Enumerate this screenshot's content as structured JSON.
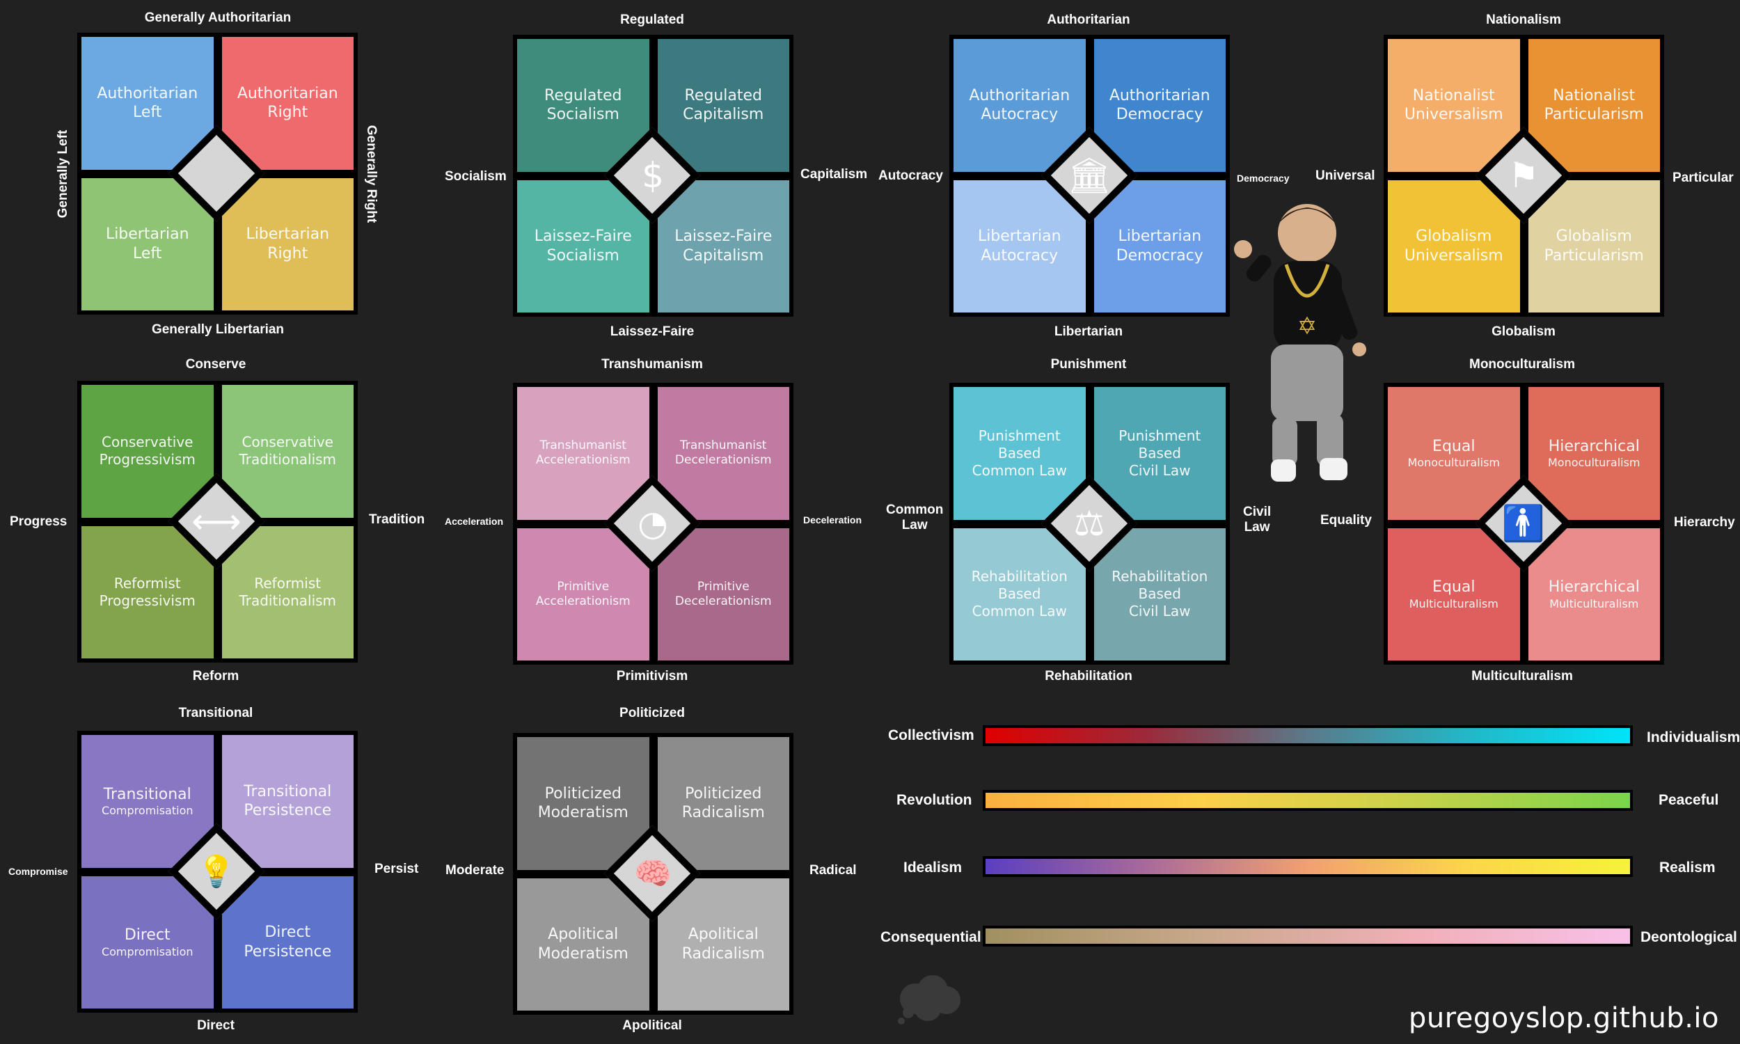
{
  "compasses": {
    "c1": {
      "top": "Generally Authoritarian",
      "bottom": "Generally Libertarian",
      "left": "Generally Left",
      "right": "Generally Right",
      "tl": "Authoritarian\nLeft",
      "tr": "Authoritarian\nRight",
      "bl": "Libertarian\nLeft",
      "br": "Libertarian\nRight",
      "icon": "blank-diamond-icon"
    },
    "c2": {
      "top": "Regulated",
      "bottom": "Laissez-Faire",
      "left": "Socialism",
      "right": "Capitalism",
      "tl": "Regulated\nSocialism",
      "tr": "Regulated\nCapitalism",
      "bl": "Laissez-Faire\nSocialism",
      "br": "Laissez-Faire\nCapitalism",
      "icon": "dollar-icon",
      "glyph": "$"
    },
    "c3": {
      "top": "Authoritarian",
      "bottom": "Libertarian",
      "left": "Autocracy",
      "right": "Democracy",
      "tl": "Authoritarian\nAutocracy",
      "tr": "Authoritarian\nDemocracy",
      "bl": "Libertarian\nAutocracy",
      "br": "Libertarian\nDemocracy",
      "icon": "government-building-icon",
      "glyph": "🏛"
    },
    "c4": {
      "top": "Nationalism",
      "bottom": "Globalism",
      "left": "Universal",
      "right": "Particular",
      "tl": "Nationalist\nUniversalism",
      "tr": "Nationalist\nParticularism",
      "bl": "Globalism\nUniversalism",
      "br": "Globalism\nParticularism",
      "icon": "flag-icon",
      "glyph": "⚑"
    },
    "c5": {
      "top": "Conserve",
      "bottom": "Reform",
      "left": "Progress",
      "right": "Tradition",
      "tl": "Conservative\nProgressivism",
      "tr": "Conservative\nTraditionalism",
      "bl": "Reformist\nProgressivism",
      "br": "Reformist\nTraditionalism",
      "icon": "double-arrow-icon",
      "glyph": "⟷"
    },
    "c6": {
      "top": "Transhumanism",
      "bottom": "Primitivism",
      "left": "Acceleration",
      "right": "Deceleration",
      "tl": "Transhumanist\nAccelerationism",
      "tr": "Transhumanist\nDecelerationism",
      "bl": "Primitive\nAccelerationism",
      "br": "Primitive\nDecelerationism",
      "icon": "clock-icon",
      "glyph": "◔"
    },
    "c7": {
      "top": "Punishment",
      "bottom": "Rehabilitation",
      "left": "Common\nLaw",
      "right": "Civil\nLaw",
      "tl": "Punishment\nBased\nCommon Law",
      "tr": "Punishment\nBased\nCivil Law",
      "bl": "Rehabilitation\nBased\nCommon Law",
      "br": "Rehabilitation\nBased\nCivil Law",
      "icon": "gavel-icon",
      "glyph": "⚖"
    },
    "c8": {
      "top": "Monoculturalism",
      "bottom": "Multiculturalism",
      "left": "Equality",
      "right": "Hierarchy",
      "tl": "Equal",
      "tl_sub": "Monoculturalism",
      "tr": "Hierarchical",
      "tr_sub": "Monoculturalism",
      "bl": "Equal",
      "bl_sub": "Multiculturalism",
      "br": "Hierarchical",
      "br_sub": "Multiculturalism",
      "icon": "person-icon",
      "glyph": "🚹"
    },
    "c9": {
      "top": "Transitional",
      "bottom": "Direct",
      "left": "Compromise",
      "right": "Persist",
      "tl": "Transitional",
      "tl_sub": "Compromisation",
      "tr": "Transitional\nPersistence",
      "bl": "Direct",
      "bl_sub": "Compromisation",
      "br": "Direct\nPersistence",
      "icon": "lightbulb-icon",
      "glyph": "💡"
    },
    "c10": {
      "top": "Politicized",
      "bottom": "Apolitical",
      "left": "Moderate",
      "right": "Radical",
      "tl": "Politicized\nModeratism",
      "tr": "Politicized\nRadicalism",
      "bl": "Apolitical\nModeratism",
      "br": "Apolitical\nRadicalism",
      "icon": "brain-icon",
      "glyph": "🧠"
    }
  },
  "bars": [
    {
      "left": "Collectivism",
      "right": "Individualism",
      "gradient": [
        "#e00000",
        "#9b2a3a",
        "#5a7a8a",
        "#22b8c8",
        "#00e4f8"
      ]
    },
    {
      "left": "Revolution",
      "right": "Peaceful",
      "gradient": [
        "#fbb040",
        "#fcd04a",
        "#c7d24a",
        "#7ad44a"
      ]
    },
    {
      "left": "Idealism",
      "right": "Realism",
      "gradient": [
        "#5a3fc0",
        "#a86a9a",
        "#f2a070",
        "#fbd64a",
        "#f6f23a"
      ]
    },
    {
      "left": "Consequential",
      "right": "Deontological",
      "gradient": [
        "#a09060",
        "#c8a88a",
        "#f0b0b8",
        "#f8c0e8"
      ]
    }
  ],
  "footer": "puregoyslop.github.io"
}
